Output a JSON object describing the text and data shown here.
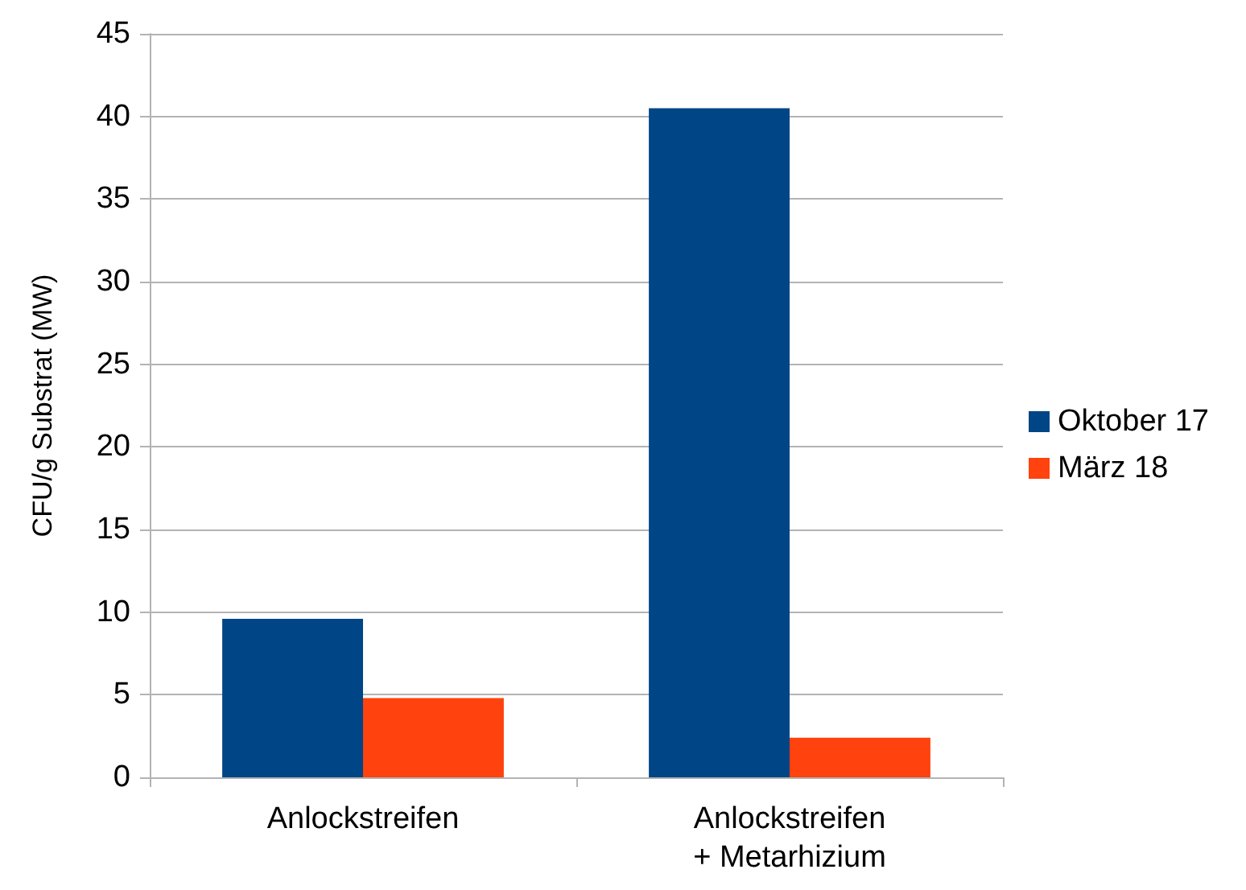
{
  "chart_data": {
    "type": "bar",
    "ylabel": "CFU/g Substrat (MW)",
    "categories": [
      "Anlockstreifen",
      "Anlockstreifen\n+ Metarhizium"
    ],
    "series": [
      {
        "name": "Oktober 17",
        "color": "#004586",
        "values": [
          9.6,
          40.5
        ]
      },
      {
        "name": "März 18",
        "color": "#ff420e",
        "values": [
          4.8,
          2.4
        ]
      }
    ],
    "ylim": [
      0,
      45
    ],
    "yticks": [
      0,
      5,
      10,
      15,
      20,
      25,
      30,
      35,
      40,
      45
    ],
    "grid": "y",
    "legend": "right"
  }
}
